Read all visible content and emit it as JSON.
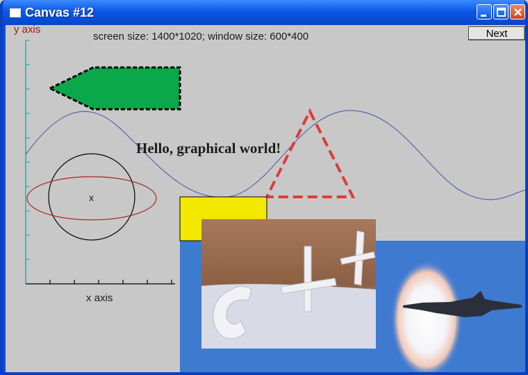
{
  "window": {
    "title": "Canvas #12"
  },
  "controls": {
    "next_label": "Next"
  },
  "canvas": {
    "status_text": "screen size: 1400*1020; window size: 600*400",
    "y_axis_label": "y axis",
    "x_axis_label": "x axis",
    "greeting": "Hello, graphical world!",
    "circle_marker": "x"
  },
  "colors": {
    "axis": "#1ab0b0",
    "y_axis_label": "#a01818",
    "sine": "#5566aa",
    "arrow_fill": "#0aa84a",
    "triangle": "#e03a3a",
    "ellipse": "#b02020",
    "rectangle": "#f5e800",
    "sky": "#3e7ad0"
  },
  "icons": [
    "window-icon",
    "minimize-icon",
    "maximize-icon",
    "close-icon"
  ]
}
